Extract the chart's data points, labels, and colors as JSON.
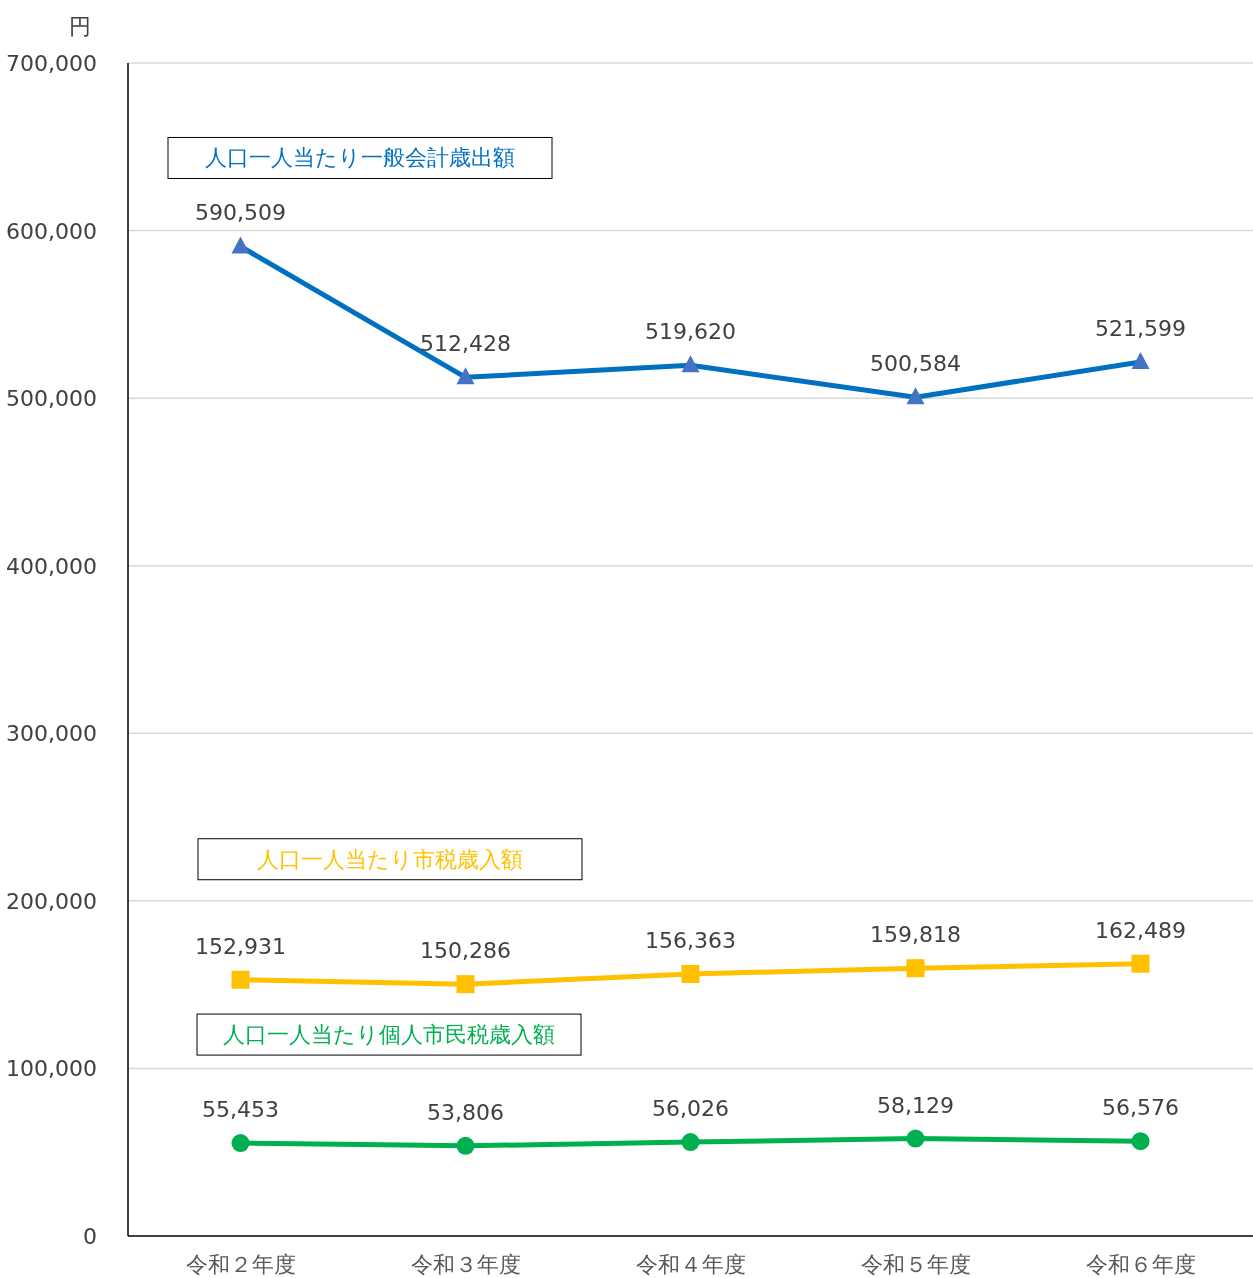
{
  "chart_data": {
    "type": "line",
    "ylabel": "円",
    "categories": [
      "令和２年度",
      "令和３年度",
      "令和４年度",
      "令和５年度",
      "令和６年度"
    ],
    "series": [
      {
        "name": "人口一人当たり一般会計歳出額",
        "color": "#0070c0",
        "marker": "triangle",
        "values": [
          590509,
          512428,
          519620,
          500584,
          521599
        ],
        "value_labels": [
          "590,509",
          "512,428",
          "519,620",
          "500,584",
          "521,599"
        ]
      },
      {
        "name": "人口一人当たり市税歳入額",
        "color": "#ffc000",
        "marker": "square",
        "values": [
          152931,
          150286,
          156363,
          159818,
          162489
        ],
        "value_labels": [
          "152,931",
          "150,286",
          "156,363",
          "159,818",
          "162,489"
        ]
      },
      {
        "name": "人口一人当たり個人市民税歳入額",
        "color": "#00b050",
        "marker": "circle",
        "values": [
          55453,
          53806,
          56026,
          58129,
          56576
        ],
        "value_labels": [
          "55,453",
          "53,806",
          "56,026",
          "58,129",
          "56,576"
        ]
      }
    ],
    "ylim": [
      0,
      700000
    ],
    "yticks": [
      0,
      {
        "value": 100000,
        "label": "100,000"
      },
      {
        "value": 200000,
        "label": "200,000"
      },
      {
        "value": 300000,
        "label": "300,000"
      },
      {
        "value": 400000,
        "label": "400,000"
      },
      {
        "value": 500000,
        "label": "500,000"
      },
      {
        "value": 600000,
        "label": "600,000"
      },
      {
        "value": 700000,
        "label": "700,000"
      }
    ],
    "grid": "y"
  }
}
